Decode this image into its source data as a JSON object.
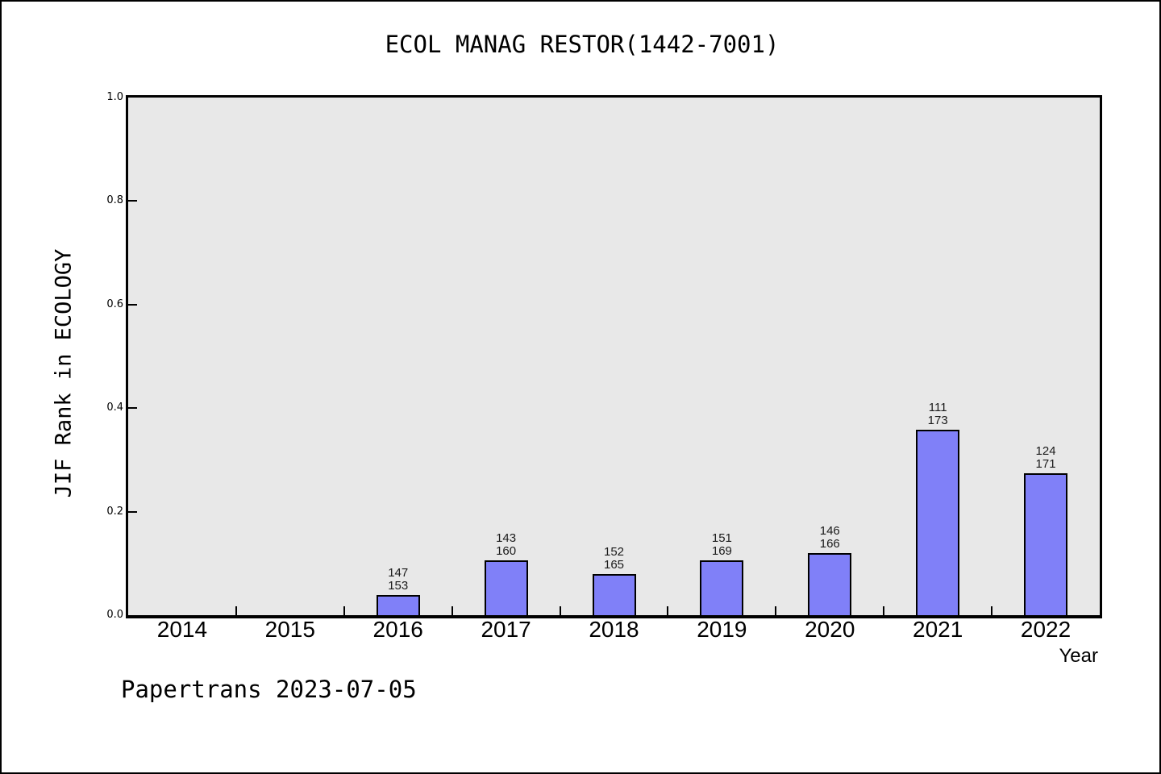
{
  "page": {
    "footer": "Papertrans 2023-07-05"
  },
  "chart_data": {
    "type": "bar",
    "title": "ECOL MANAG RESTOR(1442-7001)",
    "xlabel": "Year",
    "ylabel": "JIF Rank in ECOLOGY",
    "categories": [
      "2014",
      "2015",
      "2016",
      "2017",
      "2018",
      "2019",
      "2020",
      "2021",
      "2022"
    ],
    "yticks": [
      "0.0",
      "0.2",
      "0.4",
      "0.6",
      "0.8",
      "1.0"
    ],
    "ylim": [
      0,
      1
    ],
    "grid": false,
    "legend_position": "none",
    "plot_bg_color": "#e8e8e8",
    "bar_fill_color": "#8080f8",
    "bar_border_color": "#000000",
    "bars": [
      {
        "category": "2016",
        "rank": "147",
        "total": "153",
        "value": 0.0392
      },
      {
        "category": "2017",
        "rank": "143",
        "total": "160",
        "value": 0.1063
      },
      {
        "category": "2018",
        "rank": "152",
        "total": "165",
        "value": 0.0788
      },
      {
        "category": "2019",
        "rank": "151",
        "total": "169",
        "value": 0.1065
      },
      {
        "category": "2020",
        "rank": "146",
        "total": "166",
        "value": 0.1205
      },
      {
        "category": "2021",
        "rank": "111",
        "total": "173",
        "value": 0.3584
      },
      {
        "category": "2022",
        "rank": "124",
        "total": "171",
        "value": 0.2749
      }
    ]
  }
}
